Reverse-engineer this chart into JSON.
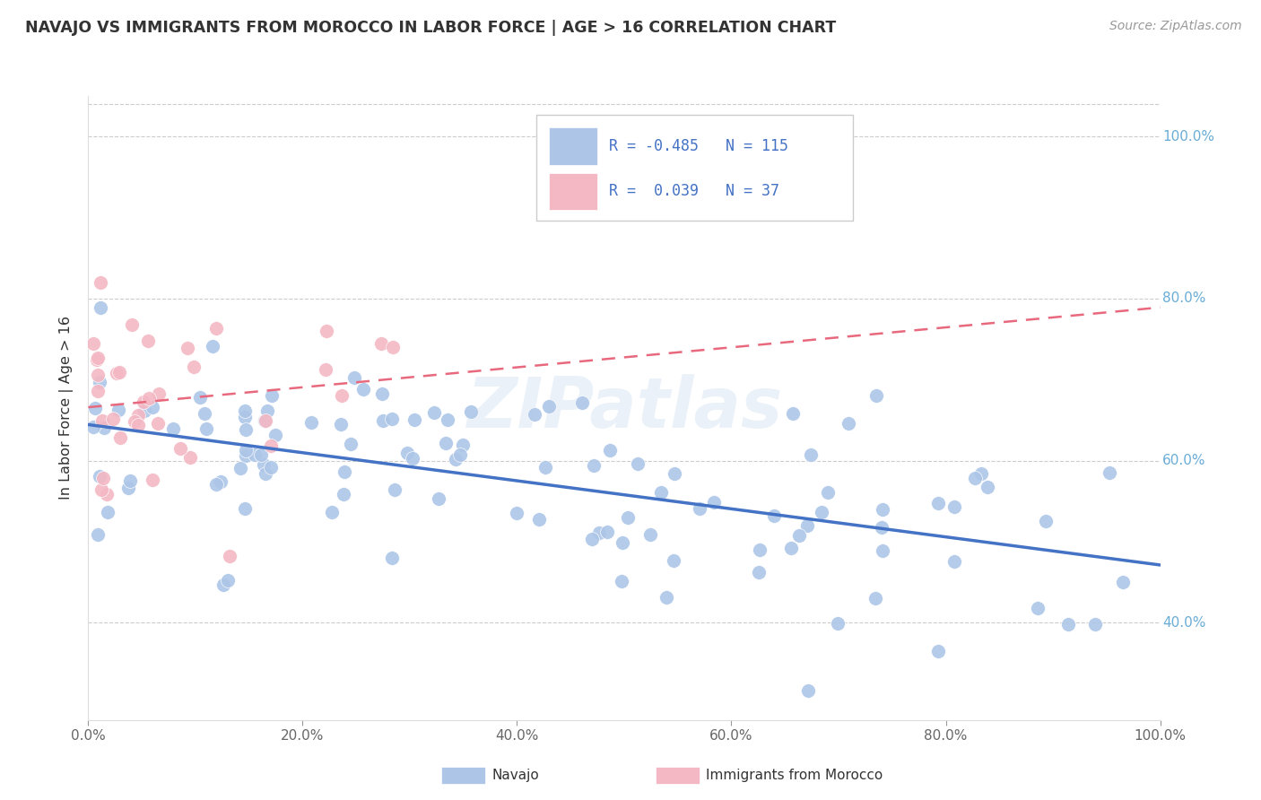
{
  "title": "NAVAJO VS IMMIGRANTS FROM MOROCCO IN LABOR FORCE | AGE > 16 CORRELATION CHART",
  "source": "Source: ZipAtlas.com",
  "ylabel": "In Labor Force | Age > 16",
  "x_min": 0.0,
  "x_max": 1.0,
  "y_min": 0.28,
  "y_max": 1.05,
  "x_tick_vals": [
    0.0,
    0.2,
    0.4,
    0.6,
    0.8,
    1.0
  ],
  "x_tick_labels": [
    "0.0%",
    "20.0%",
    "40.0%",
    "60.0%",
    "80.0%",
    "100.0%"
  ],
  "y_tick_vals": [
    0.4,
    0.6,
    0.8,
    1.0
  ],
  "y_tick_labels": [
    "40.0%",
    "60.0%",
    "80.0%",
    "100.0%"
  ],
  "navajo_R": -0.485,
  "navajo_N": 115,
  "morocco_R": 0.039,
  "morocco_N": 37,
  "navajo_color": "#adc6e8",
  "morocco_color": "#f4b8c4",
  "navajo_line_color": "#4472c4",
  "morocco_line_color": "#e8697d",
  "background_color": "#ffffff",
  "grid_color": "#cccccc",
  "watermark": "ZIPatlas",
  "nav_line_x0": 0.0,
  "nav_line_y0": 0.655,
  "nav_line_x1": 1.0,
  "nav_line_y1": 0.467,
  "mor_line_x0": 0.0,
  "mor_line_y0": 0.658,
  "mor_line_x1": 1.0,
  "mor_line_y1": 0.72,
  "legend_R_color": "#4472c4",
  "legend_text_color": "#333333",
  "title_color": "#333333",
  "source_color": "#999999",
  "ylabel_color": "#333333",
  "ytick_color": "#6aacd6",
  "xtick_color": "#666666"
}
